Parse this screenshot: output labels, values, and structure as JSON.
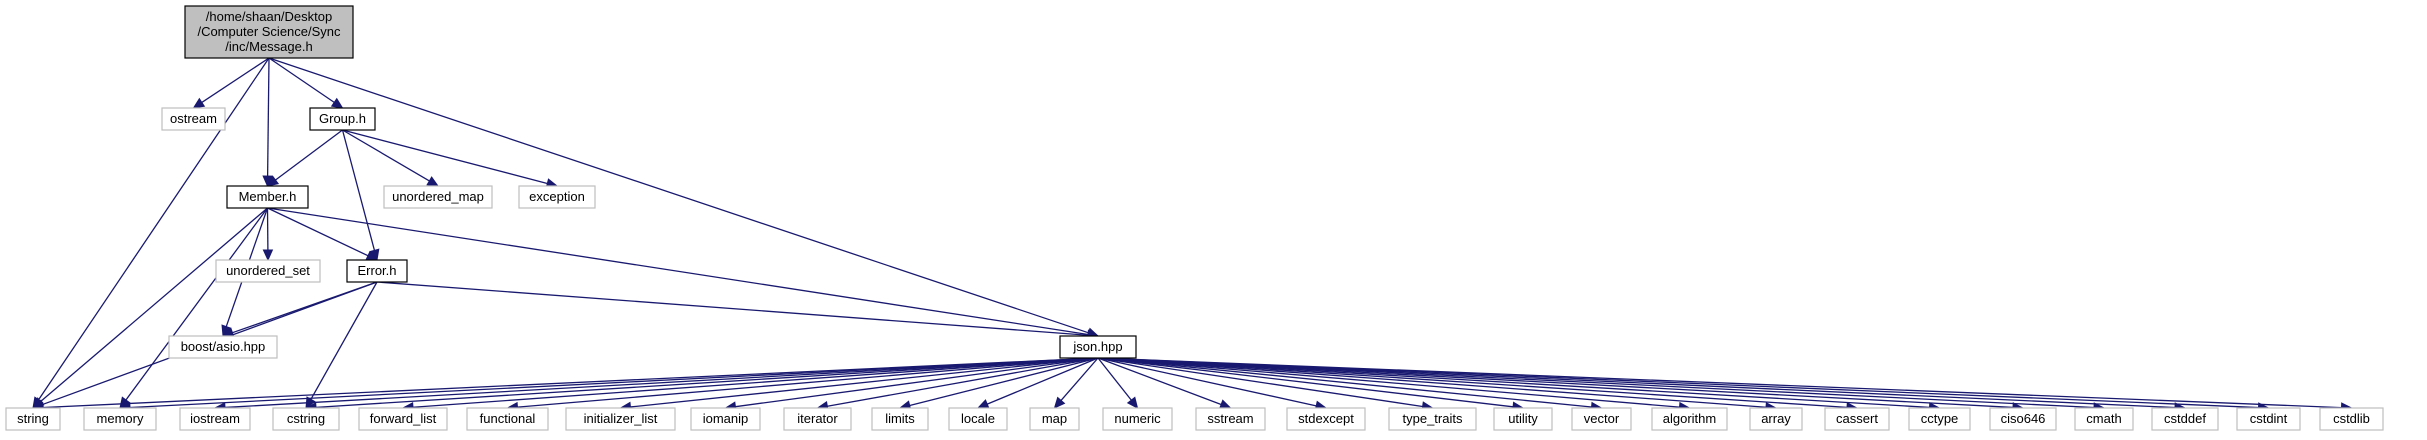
{
  "graph": {
    "colors": {
      "edge": "#191970",
      "root_fill": "#bfbfbf",
      "root_border": "#000000",
      "project_border": "#000000",
      "system_border": "#bfbfbf",
      "node_fill": "#ffffff"
    },
    "nodes": [
      {
        "id": "message_h",
        "kind": "root",
        "lines": [
          "/home/shaan/Desktop",
          "/Computer Science/Sync",
          "/inc/Message.h"
        ]
      },
      {
        "id": "ostream",
        "kind": "system",
        "lines": [
          "ostream"
        ]
      },
      {
        "id": "group_h",
        "kind": "project",
        "lines": [
          "Group.h"
        ]
      },
      {
        "id": "member_h",
        "kind": "project",
        "lines": [
          "Member.h"
        ]
      },
      {
        "id": "unordered_map",
        "kind": "system",
        "lines": [
          "unordered_map"
        ]
      },
      {
        "id": "exception",
        "kind": "system",
        "lines": [
          "exception"
        ]
      },
      {
        "id": "unordered_set",
        "kind": "system",
        "lines": [
          "unordered_set"
        ]
      },
      {
        "id": "error_h",
        "kind": "project",
        "lines": [
          "Error.h"
        ]
      },
      {
        "id": "boost_asio",
        "kind": "system",
        "lines": [
          "boost/asio.hpp"
        ]
      },
      {
        "id": "json_hpp",
        "kind": "project",
        "lines": [
          "json.hpp"
        ]
      },
      {
        "id": "string",
        "kind": "system",
        "lines": [
          "string"
        ]
      },
      {
        "id": "memory",
        "kind": "system",
        "lines": [
          "memory"
        ]
      },
      {
        "id": "iostream",
        "kind": "system",
        "lines": [
          "iostream"
        ]
      },
      {
        "id": "cstring",
        "kind": "system",
        "lines": [
          "cstring"
        ]
      },
      {
        "id": "forward_list",
        "kind": "system",
        "lines": [
          "forward_list"
        ]
      },
      {
        "id": "functional",
        "kind": "system",
        "lines": [
          "functional"
        ]
      },
      {
        "id": "initializer_list",
        "kind": "system",
        "lines": [
          "initializer_list"
        ]
      },
      {
        "id": "iomanip",
        "kind": "system",
        "lines": [
          "iomanip"
        ]
      },
      {
        "id": "iterator",
        "kind": "system",
        "lines": [
          "iterator"
        ]
      },
      {
        "id": "limits",
        "kind": "system",
        "lines": [
          "limits"
        ]
      },
      {
        "id": "locale",
        "kind": "system",
        "lines": [
          "locale"
        ]
      },
      {
        "id": "map",
        "kind": "system",
        "lines": [
          "map"
        ]
      },
      {
        "id": "numeric",
        "kind": "system",
        "lines": [
          "numeric"
        ]
      },
      {
        "id": "sstream",
        "kind": "system",
        "lines": [
          "sstream"
        ]
      },
      {
        "id": "stdexcept",
        "kind": "system",
        "lines": [
          "stdexcept"
        ]
      },
      {
        "id": "type_traits",
        "kind": "system",
        "lines": [
          "type_traits"
        ]
      },
      {
        "id": "utility",
        "kind": "system",
        "lines": [
          "utility"
        ]
      },
      {
        "id": "vector",
        "kind": "system",
        "lines": [
          "vector"
        ]
      },
      {
        "id": "algorithm",
        "kind": "system",
        "lines": [
          "algorithm"
        ]
      },
      {
        "id": "array",
        "kind": "system",
        "lines": [
          "array"
        ]
      },
      {
        "id": "cassert",
        "kind": "system",
        "lines": [
          "cassert"
        ]
      },
      {
        "id": "cctype",
        "kind": "system",
        "lines": [
          "cctype"
        ]
      },
      {
        "id": "ciso646",
        "kind": "system",
        "lines": [
          "ciso646"
        ]
      },
      {
        "id": "cmath",
        "kind": "system",
        "lines": [
          "cmath"
        ]
      },
      {
        "id": "cstddef",
        "kind": "system",
        "lines": [
          "cstddef"
        ]
      },
      {
        "id": "cstdint",
        "kind": "system",
        "lines": [
          "cstdint"
        ]
      },
      {
        "id": "cstdlib",
        "kind": "system",
        "lines": [
          "cstdlib"
        ]
      }
    ],
    "edges": [
      [
        "message_h",
        "string"
      ],
      [
        "message_h",
        "ostream"
      ],
      [
        "message_h",
        "member_h"
      ],
      [
        "message_h",
        "group_h"
      ],
      [
        "message_h",
        "json_hpp"
      ],
      [
        "group_h",
        "member_h"
      ],
      [
        "group_h",
        "unordered_map"
      ],
      [
        "group_h",
        "exception"
      ],
      [
        "group_h",
        "error_h"
      ],
      [
        "member_h",
        "string"
      ],
      [
        "member_h",
        "memory"
      ],
      [
        "member_h",
        "boost_asio"
      ],
      [
        "member_h",
        "unordered_set"
      ],
      [
        "member_h",
        "error_h"
      ],
      [
        "member_h",
        "json_hpp"
      ],
      [
        "error_h",
        "string"
      ],
      [
        "error_h",
        "boost_asio"
      ],
      [
        "error_h",
        "cstring"
      ],
      [
        "error_h",
        "json_hpp"
      ],
      [
        "json_hpp",
        "string"
      ],
      [
        "json_hpp",
        "memory"
      ],
      [
        "json_hpp",
        "iostream"
      ],
      [
        "json_hpp",
        "cstring"
      ],
      [
        "json_hpp",
        "forward_list"
      ],
      [
        "json_hpp",
        "functional"
      ],
      [
        "json_hpp",
        "initializer_list"
      ],
      [
        "json_hpp",
        "iomanip"
      ],
      [
        "json_hpp",
        "iterator"
      ],
      [
        "json_hpp",
        "limits"
      ],
      [
        "json_hpp",
        "locale"
      ],
      [
        "json_hpp",
        "map"
      ],
      [
        "json_hpp",
        "numeric"
      ],
      [
        "json_hpp",
        "sstream"
      ],
      [
        "json_hpp",
        "stdexcept"
      ],
      [
        "json_hpp",
        "type_traits"
      ],
      [
        "json_hpp",
        "utility"
      ],
      [
        "json_hpp",
        "vector"
      ],
      [
        "json_hpp",
        "algorithm"
      ],
      [
        "json_hpp",
        "array"
      ],
      [
        "json_hpp",
        "cassert"
      ],
      [
        "json_hpp",
        "cctype"
      ],
      [
        "json_hpp",
        "ciso646"
      ],
      [
        "json_hpp",
        "cmath"
      ],
      [
        "json_hpp",
        "cstddef"
      ],
      [
        "json_hpp",
        "cstdint"
      ],
      [
        "json_hpp",
        "cstdlib"
      ]
    ]
  }
}
